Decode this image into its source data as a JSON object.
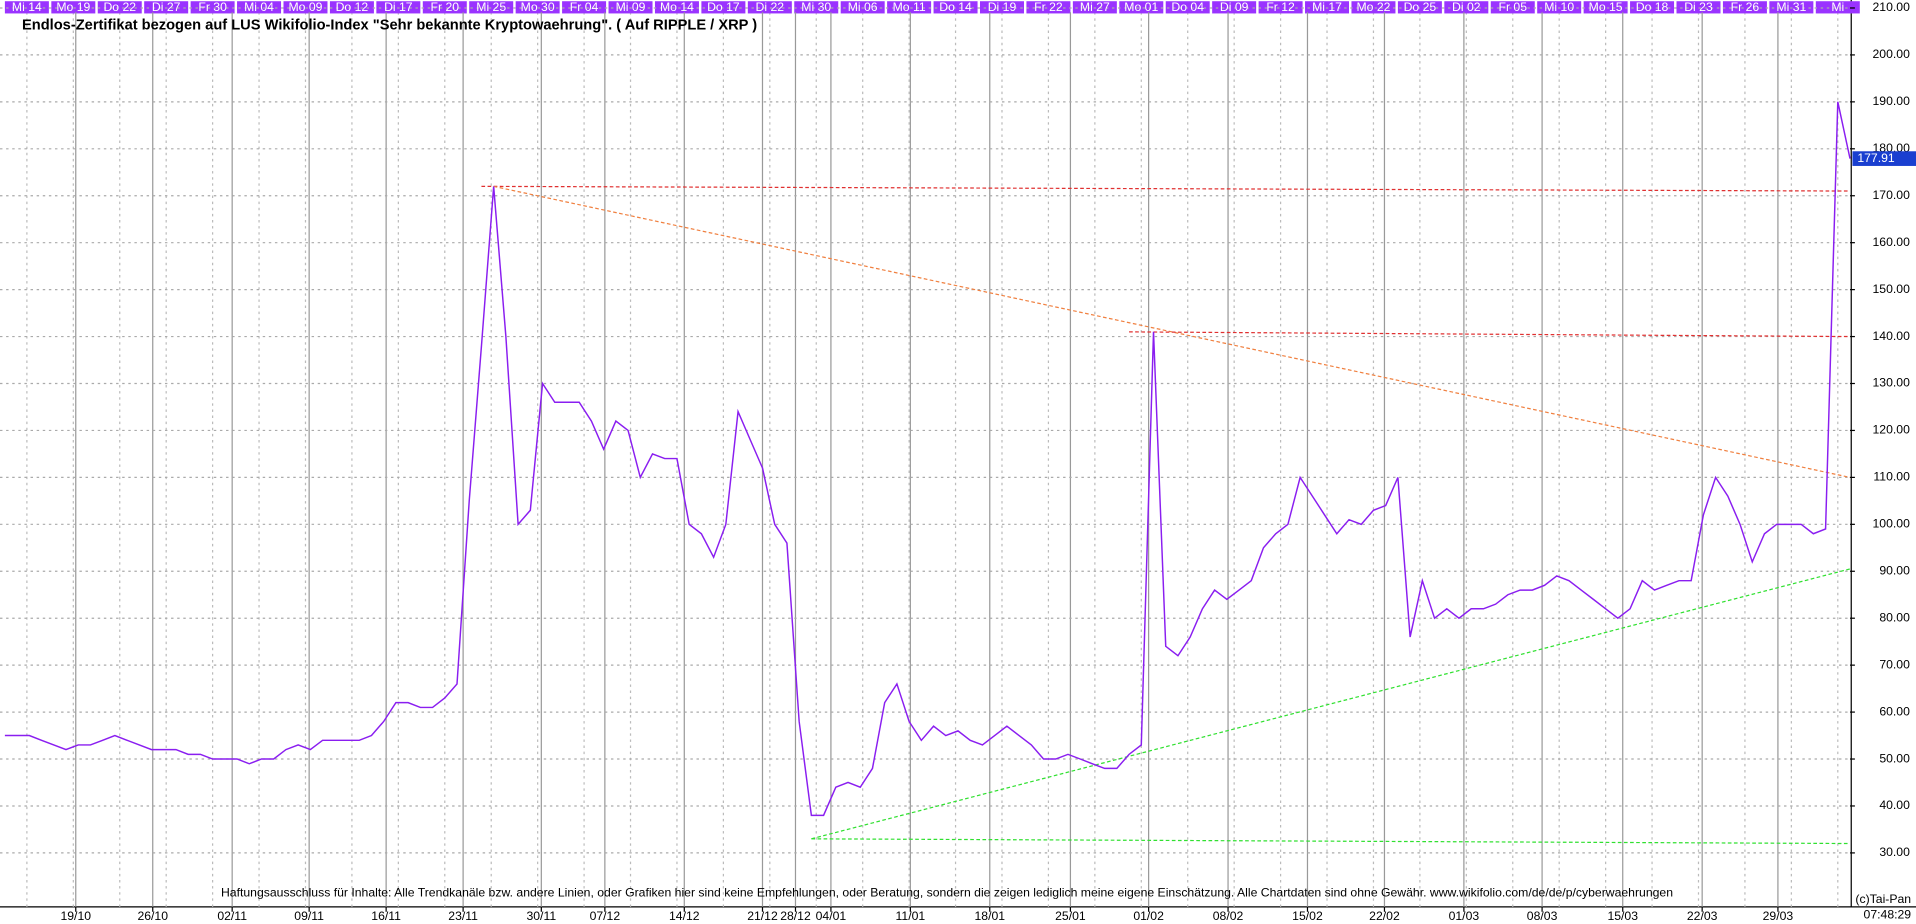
{
  "chart_data": {
    "type": "line",
    "title": "Endlos-Zertifikat bezogen auf LUS Wikifolio-Index \"Sehr bekannte Kryptowaehrung\". ( Auf RIPPLE / XRP )",
    "top_labels": [
      "Mi 14",
      "Mo 19",
      "Do 22",
      "Di 27",
      "Fr 30",
      "Mi 04",
      "Mo 09",
      "Do 12",
      "Di 17",
      "Fr 20",
      "Mi 25",
      "Mo 30",
      "Fr 04",
      "Mi 09",
      "Mo 14",
      "Do 17",
      "Di 22",
      "Mi 30",
      "Mi 06",
      "Mo 11",
      "Do 14",
      "Di 19",
      "Fr 22",
      "Mi 27",
      "Mo 01",
      "Do 04",
      "Di 09",
      "Fr 12",
      "Mi 17",
      "Mo 22",
      "Do 25",
      "Di 02",
      "Fr 05",
      "Mi 10",
      "Mo 15",
      "Do 18",
      "Di 23",
      "Fr 26",
      "Mi 31",
      "Mi"
    ],
    "x_labels": [
      "19/10",
      "26/10",
      "02/11",
      "09/11",
      "16/11",
      "23/11",
      "30/11",
      "07/12",
      "14/12",
      "21/12",
      "28/12",
      "04/01",
      "11/01",
      "18/01",
      "25/01",
      "01/02",
      "08/02",
      "15/02",
      "22/02",
      "01/03",
      "08/03",
      "15/03",
      "22/03",
      "29/03"
    ],
    "timestamp": "07:48:29",
    "disclaimer": "Haftungsausschluss für Inhalte: Alle Trendkanäle bzw. andere Linien, oder Grafiken hier sind keine Empfehlungen, oder Beratung, sondern die zeigen lediglich meine eigene Einschätzung. Alle Chartdaten sind ohne Gewähr.  www.wikifolio.com/de/de/p/cyberwaehrungen",
    "copyright": "(c)Tai-Pan",
    "ylim": [
      18.5,
      211.7
    ],
    "yticks": [
      {
        "value": 30,
        "label": "30.00"
      },
      {
        "value": 40,
        "label": "40.00"
      },
      {
        "value": 50,
        "label": "50.00"
      },
      {
        "value": 60,
        "label": "60.00"
      },
      {
        "value": 70,
        "label": "70.00"
      },
      {
        "value": 80,
        "label": "80.00"
      },
      {
        "value": 90,
        "label": "90.00"
      },
      {
        "value": 100,
        "label": "100.00"
      },
      {
        "value": 110,
        "label": "110.00"
      },
      {
        "value": 120,
        "label": "120.00"
      },
      {
        "value": 130,
        "label": "130.00"
      },
      {
        "value": 140,
        "label": "140.00"
      },
      {
        "value": 150,
        "label": "150.00"
      },
      {
        "value": 160,
        "label": "160.00"
      },
      {
        "value": 170,
        "label": "170.00"
      },
      {
        "value": 180,
        "label": "180.00"
      },
      {
        "value": 190,
        "label": "190.00"
      },
      {
        "value": 200,
        "label": "200.00"
      },
      {
        "value": 210,
        "label": "210.00"
      }
    ],
    "grid": true,
    "series": [
      {
        "color": "#8a1ef0",
        "values": [
          55,
          55,
          55,
          54,
          53,
          52,
          53,
          53,
          54,
          55,
          54,
          53,
          52,
          52,
          52,
          51,
          51,
          50,
          50,
          50,
          49,
          50,
          50,
          52,
          53,
          52,
          54,
          54,
          54,
          54,
          55,
          58,
          62,
          62,
          61,
          61,
          63,
          66,
          105,
          138,
          172,
          140,
          100,
          103,
          130,
          126,
          126,
          126,
          122,
          116,
          122,
          120,
          110,
          115,
          114,
          114,
          100,
          98,
          93,
          100,
          124,
          118,
          112,
          100,
          96,
          58,
          38,
          38,
          44,
          45,
          44,
          48,
          62,
          66,
          58,
          54,
          57,
          55,
          56,
          54,
          53,
          55,
          57,
          55,
          53,
          50,
          50,
          51,
          50,
          49,
          48,
          48,
          51,
          53,
          141,
          74,
          72,
          76,
          82,
          86,
          84,
          86,
          88,
          95,
          98,
          100,
          110,
          106,
          102,
          98,
          101,
          100,
          103,
          104,
          110,
          76,
          88,
          80,
          82,
          80,
          82,
          82,
          83,
          85,
          86,
          86,
          87,
          89,
          88,
          86,
          84,
          82,
          80,
          82,
          88,
          86,
          87,
          88,
          88,
          102,
          110,
          106,
          100,
          92,
          98,
          100,
          100,
          100,
          98,
          99,
          190,
          177.91
        ]
      }
    ],
    "trendlines": [
      {
        "color": "#e03030",
        "points": [
          [
            39,
            172
          ],
          [
            151,
            171
          ]
        ]
      },
      {
        "color": "#f08040",
        "points": [
          [
            40,
            172
          ],
          [
            151,
            110
          ]
        ]
      },
      {
        "color": "#e03030",
        "points": [
          [
            92,
            141
          ],
          [
            151,
            140
          ]
        ]
      },
      {
        "color": "#30e030",
        "points": [
          [
            66,
            33
          ],
          [
            151,
            90.5
          ]
        ]
      },
      {
        "color": "#30e030",
        "points": [
          [
            66,
            33
          ],
          [
            151,
            32
          ]
        ]
      }
    ]
  }
}
